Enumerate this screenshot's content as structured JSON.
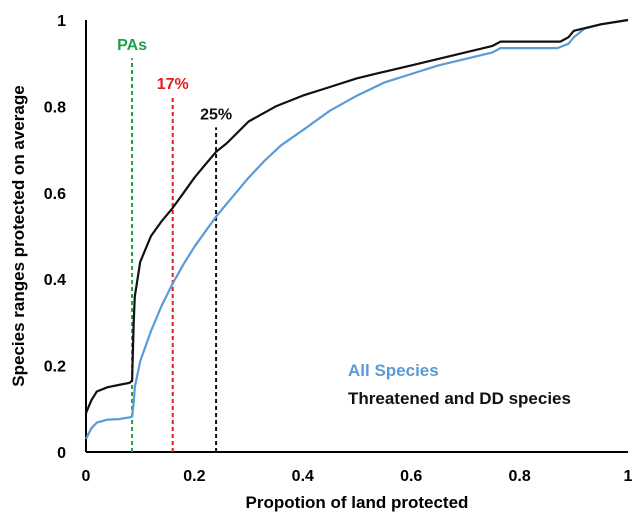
{
  "chart_data": {
    "type": "line",
    "title": "",
    "xlabel": "Propotion of land protected",
    "ylabel": "Species ranges protected on average",
    "xlim": [
      0,
      1
    ],
    "ylim": [
      0,
      1
    ],
    "x_ticks": [
      "0",
      "0.2",
      "0.4",
      "0.6",
      "0.8",
      "1"
    ],
    "y_ticks": [
      "0",
      "0.2",
      "0.4",
      "0.6",
      "0.8",
      "1"
    ],
    "grid": false,
    "legend_placement": "bottom-right",
    "series": [
      {
        "name": "All Species",
        "color": "#5b9bd5",
        "x": [
          0,
          0.01,
          0.02,
          0.04,
          0.06,
          0.08,
          0.085,
          0.088,
          0.09,
          0.1,
          0.12,
          0.14,
          0.16,
          0.18,
          0.2,
          0.22,
          0.24,
          0.26,
          0.28,
          0.3,
          0.33,
          0.36,
          0.4,
          0.45,
          0.5,
          0.55,
          0.6,
          0.65,
          0.7,
          0.75,
          0.765,
          0.8,
          0.85,
          0.87,
          0.89,
          0.9,
          0.92,
          0.95,
          1.0
        ],
        "y": [
          0.03,
          0.055,
          0.068,
          0.075,
          0.076,
          0.08,
          0.082,
          0.115,
          0.15,
          0.21,
          0.28,
          0.34,
          0.39,
          0.435,
          0.475,
          0.51,
          0.545,
          0.575,
          0.605,
          0.635,
          0.675,
          0.71,
          0.745,
          0.79,
          0.825,
          0.855,
          0.875,
          0.895,
          0.91,
          0.925,
          0.935,
          0.935,
          0.935,
          0.935,
          0.945,
          0.96,
          0.98,
          0.99,
          1.0
        ]
      },
      {
        "name": "Threatened and DD species",
        "color": "#111111",
        "x": [
          0,
          0.01,
          0.02,
          0.04,
          0.06,
          0.08,
          0.085,
          0.088,
          0.09,
          0.1,
          0.12,
          0.14,
          0.16,
          0.18,
          0.2,
          0.22,
          0.24,
          0.26,
          0.3,
          0.35,
          0.4,
          0.45,
          0.5,
          0.55,
          0.6,
          0.65,
          0.7,
          0.75,
          0.765,
          0.8,
          0.85,
          0.875,
          0.89,
          0.9,
          0.95,
          1.0
        ],
        "y": [
          0.09,
          0.12,
          0.14,
          0.15,
          0.155,
          0.16,
          0.165,
          0.3,
          0.36,
          0.44,
          0.5,
          0.535,
          0.565,
          0.6,
          0.635,
          0.665,
          0.695,
          0.715,
          0.765,
          0.8,
          0.825,
          0.845,
          0.865,
          0.88,
          0.895,
          0.91,
          0.925,
          0.94,
          0.95,
          0.95,
          0.95,
          0.95,
          0.96,
          0.975,
          0.99,
          1.0
        ]
      }
    ],
    "reference_lines": [
      {
        "label": "PAs",
        "x": 0.085,
        "top": 0.93,
        "color": "#22a047"
      },
      {
        "label": "17%",
        "x": 0.16,
        "top": 0.84,
        "color": "#e02020"
      },
      {
        "label": "25%",
        "x": 0.24,
        "top": 0.77,
        "color": "#111111"
      }
    ]
  }
}
